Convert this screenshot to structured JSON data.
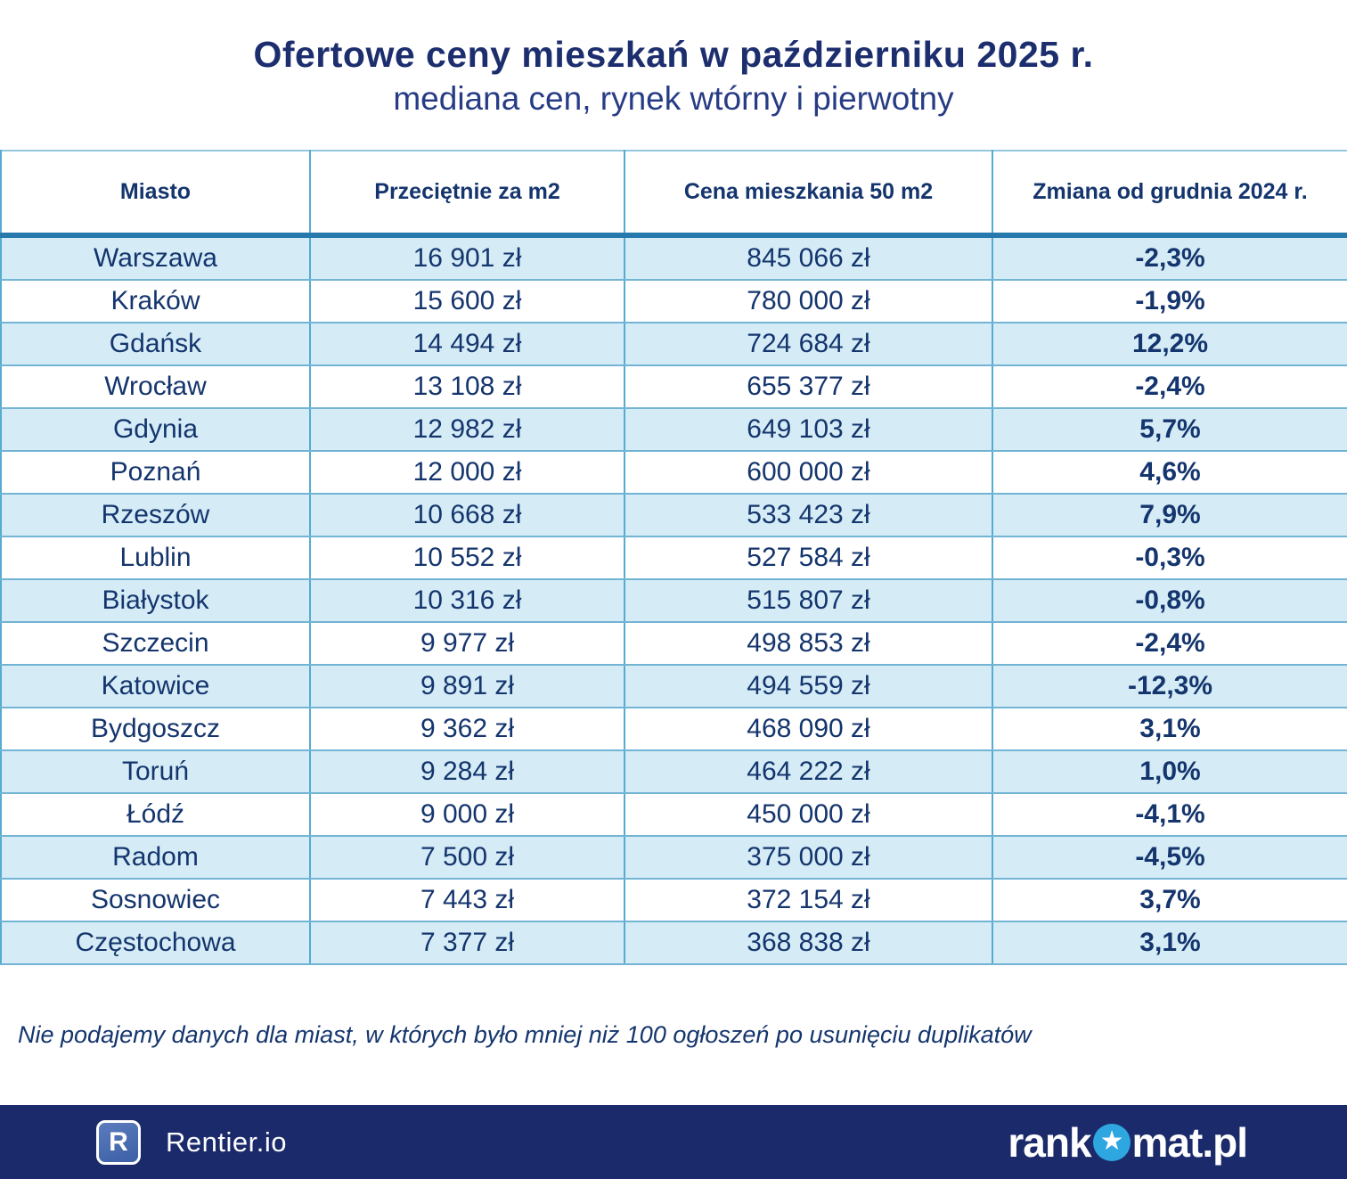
{
  "title": "Ofertowe ceny mieszkań w październiku 2025 r.",
  "subtitle": "mediana cen, rynek wtórny i pierwotny",
  "table": {
    "headers": [
      "Miasto",
      "Przeciętnie za m2",
      "Cena mieszkania 50 m2",
      "Zmiana od grudnia 2024 r."
    ],
    "rows": [
      {
        "city": "Warszawa",
        "per_m2": "16 901 zł",
        "price_50m2": "845 066 zł",
        "change": "-2,3%"
      },
      {
        "city": "Kraków",
        "per_m2": "15 600 zł",
        "price_50m2": "780 000 zł",
        "change": "-1,9%"
      },
      {
        "city": "Gdańsk",
        "per_m2": "14 494 zł",
        "price_50m2": "724 684 zł",
        "change": "12,2%"
      },
      {
        "city": "Wrocław",
        "per_m2": "13 108 zł",
        "price_50m2": "655 377 zł",
        "change": "-2,4%"
      },
      {
        "city": "Gdynia",
        "per_m2": "12 982 zł",
        "price_50m2": "649 103 zł",
        "change": "5,7%"
      },
      {
        "city": "Poznań",
        "per_m2": "12 000 zł",
        "price_50m2": "600 000 zł",
        "change": "4,6%"
      },
      {
        "city": "Rzeszów",
        "per_m2": "10 668 zł",
        "price_50m2": "533 423 zł",
        "change": "7,9%"
      },
      {
        "city": "Lublin",
        "per_m2": "10 552 zł",
        "price_50m2": "527 584 zł",
        "change": "-0,3%"
      },
      {
        "city": "Białystok",
        "per_m2": "10 316 zł",
        "price_50m2": "515 807 zł",
        "change": "-0,8%"
      },
      {
        "city": "Szczecin",
        "per_m2": "9 977 zł",
        "price_50m2": "498 853 zł",
        "change": "-2,4%"
      },
      {
        "city": "Katowice",
        "per_m2": "9 891 zł",
        "price_50m2": "494 559 zł",
        "change": "-12,3%"
      },
      {
        "city": "Bydgoszcz",
        "per_m2": "9 362 zł",
        "price_50m2": "468 090 zł",
        "change": "3,1%"
      },
      {
        "city": "Toruń",
        "per_m2": "9 284 zł",
        "price_50m2": "464 222 zł",
        "change": "1,0%"
      },
      {
        "city": "Łódź",
        "per_m2": "9 000 zł",
        "price_50m2": "450 000 zł",
        "change": "-4,1%"
      },
      {
        "city": "Radom",
        "per_m2": "7 500 zł",
        "price_50m2": "375 000 zł",
        "change": "-4,5%"
      },
      {
        "city": "Sosnowiec",
        "per_m2": "7 443 zł",
        "price_50m2": "372 154 zł",
        "change": "3,7%"
      },
      {
        "city": "Częstochowa",
        "per_m2": "7 377 zł",
        "price_50m2": "368 838 zł",
        "change": "3,1%"
      }
    ]
  },
  "chart_data": {
    "type": "table",
    "title": "Ofertowe ceny mieszkań w październiku 2025 r.",
    "subtitle": "mediana cen, rynek wtórny i pierwotny",
    "columns": [
      "Miasto",
      "Przeciętnie za m2 (zł)",
      "Cena mieszkania 50 m2 (zł)",
      "Zmiana od grudnia 2024 r. (%)"
    ],
    "rows": [
      [
        "Warszawa",
        16901,
        845066,
        -2.3
      ],
      [
        "Kraków",
        15600,
        780000,
        -1.9
      ],
      [
        "Gdańsk",
        14494,
        724684,
        12.2
      ],
      [
        "Wrocław",
        13108,
        655377,
        -2.4
      ],
      [
        "Gdynia",
        12982,
        649103,
        5.7
      ],
      [
        "Poznań",
        12000,
        600000,
        4.6
      ],
      [
        "Rzeszów",
        10668,
        533423,
        7.9
      ],
      [
        "Lublin",
        10552,
        527584,
        -0.3
      ],
      [
        "Białystok",
        10316,
        515807,
        -0.8
      ],
      [
        "Szczecin",
        9977,
        498853,
        -2.4
      ],
      [
        "Katowice",
        9891,
        494559,
        -12.3
      ],
      [
        "Bydgoszcz",
        9362,
        468090,
        3.1
      ],
      [
        "Toruń",
        9284,
        464222,
        1.0
      ],
      [
        "Łódź",
        9000,
        450000,
        -4.1
      ],
      [
        "Radom",
        7500,
        375000,
        -4.5
      ],
      [
        "Sosnowiec",
        7443,
        372154,
        3.7
      ],
      [
        "Częstochowa",
        7377,
        368838,
        3.1
      ]
    ]
  },
  "footnote": "Nie podajemy danych dla miast, w których było mniej niż 100 ogłoszeń po usunięciu duplikatów",
  "footer": {
    "rentier_icon_letter": "R",
    "rentier_label": "Rentier.io",
    "rankomat_prefix": "rank",
    "rankomat_star": "★",
    "rankomat_suffix": "mat.pl"
  },
  "colors": {
    "title_navy": "#1c2e6e",
    "text_navy": "#14356d",
    "row_light_blue": "#d5ecf7",
    "grid_vertical": "#55abd0",
    "grid_horizontal": "#72b4d4",
    "header_underline": "#2679ad",
    "footer_bar": "#1b2a6b",
    "star_circle": "#2ea6e0"
  }
}
